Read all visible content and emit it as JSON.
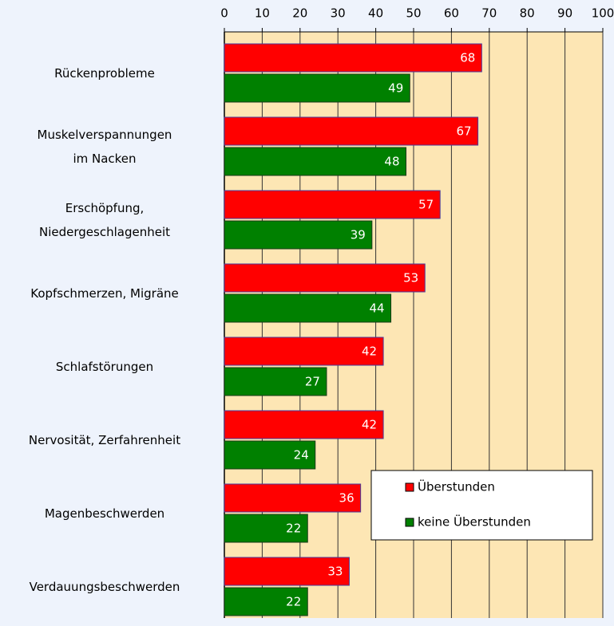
{
  "chart_data": {
    "type": "bar",
    "orientation": "horizontal",
    "categories": [
      "Rückenprobleme",
      "Muskelverspannungen\nim Nacken",
      "Erschöpfung,\nNiedergeschlagenheit",
      "Kopfschmerzen, Migräne",
      "Schlafstörungen",
      "Nervosität, Zerfahrenheit",
      "Magenbeschwerden",
      "Verdauungsbeschwerden"
    ],
    "series": [
      {
        "name": "Überstunden",
        "color": "#ff0000",
        "values": [
          68,
          67,
          57,
          53,
          42,
          42,
          36,
          33
        ]
      },
      {
        "name": "keine Überstunden",
        "color": "#008000",
        "values": [
          49,
          48,
          39,
          44,
          27,
          24,
          22,
          22
        ]
      }
    ],
    "xlim": [
      0,
      100
    ],
    "xticks": [
      0,
      10,
      20,
      30,
      40,
      50,
      60,
      70,
      80,
      90,
      100
    ],
    "grid": true,
    "legend": "lower right"
  }
}
